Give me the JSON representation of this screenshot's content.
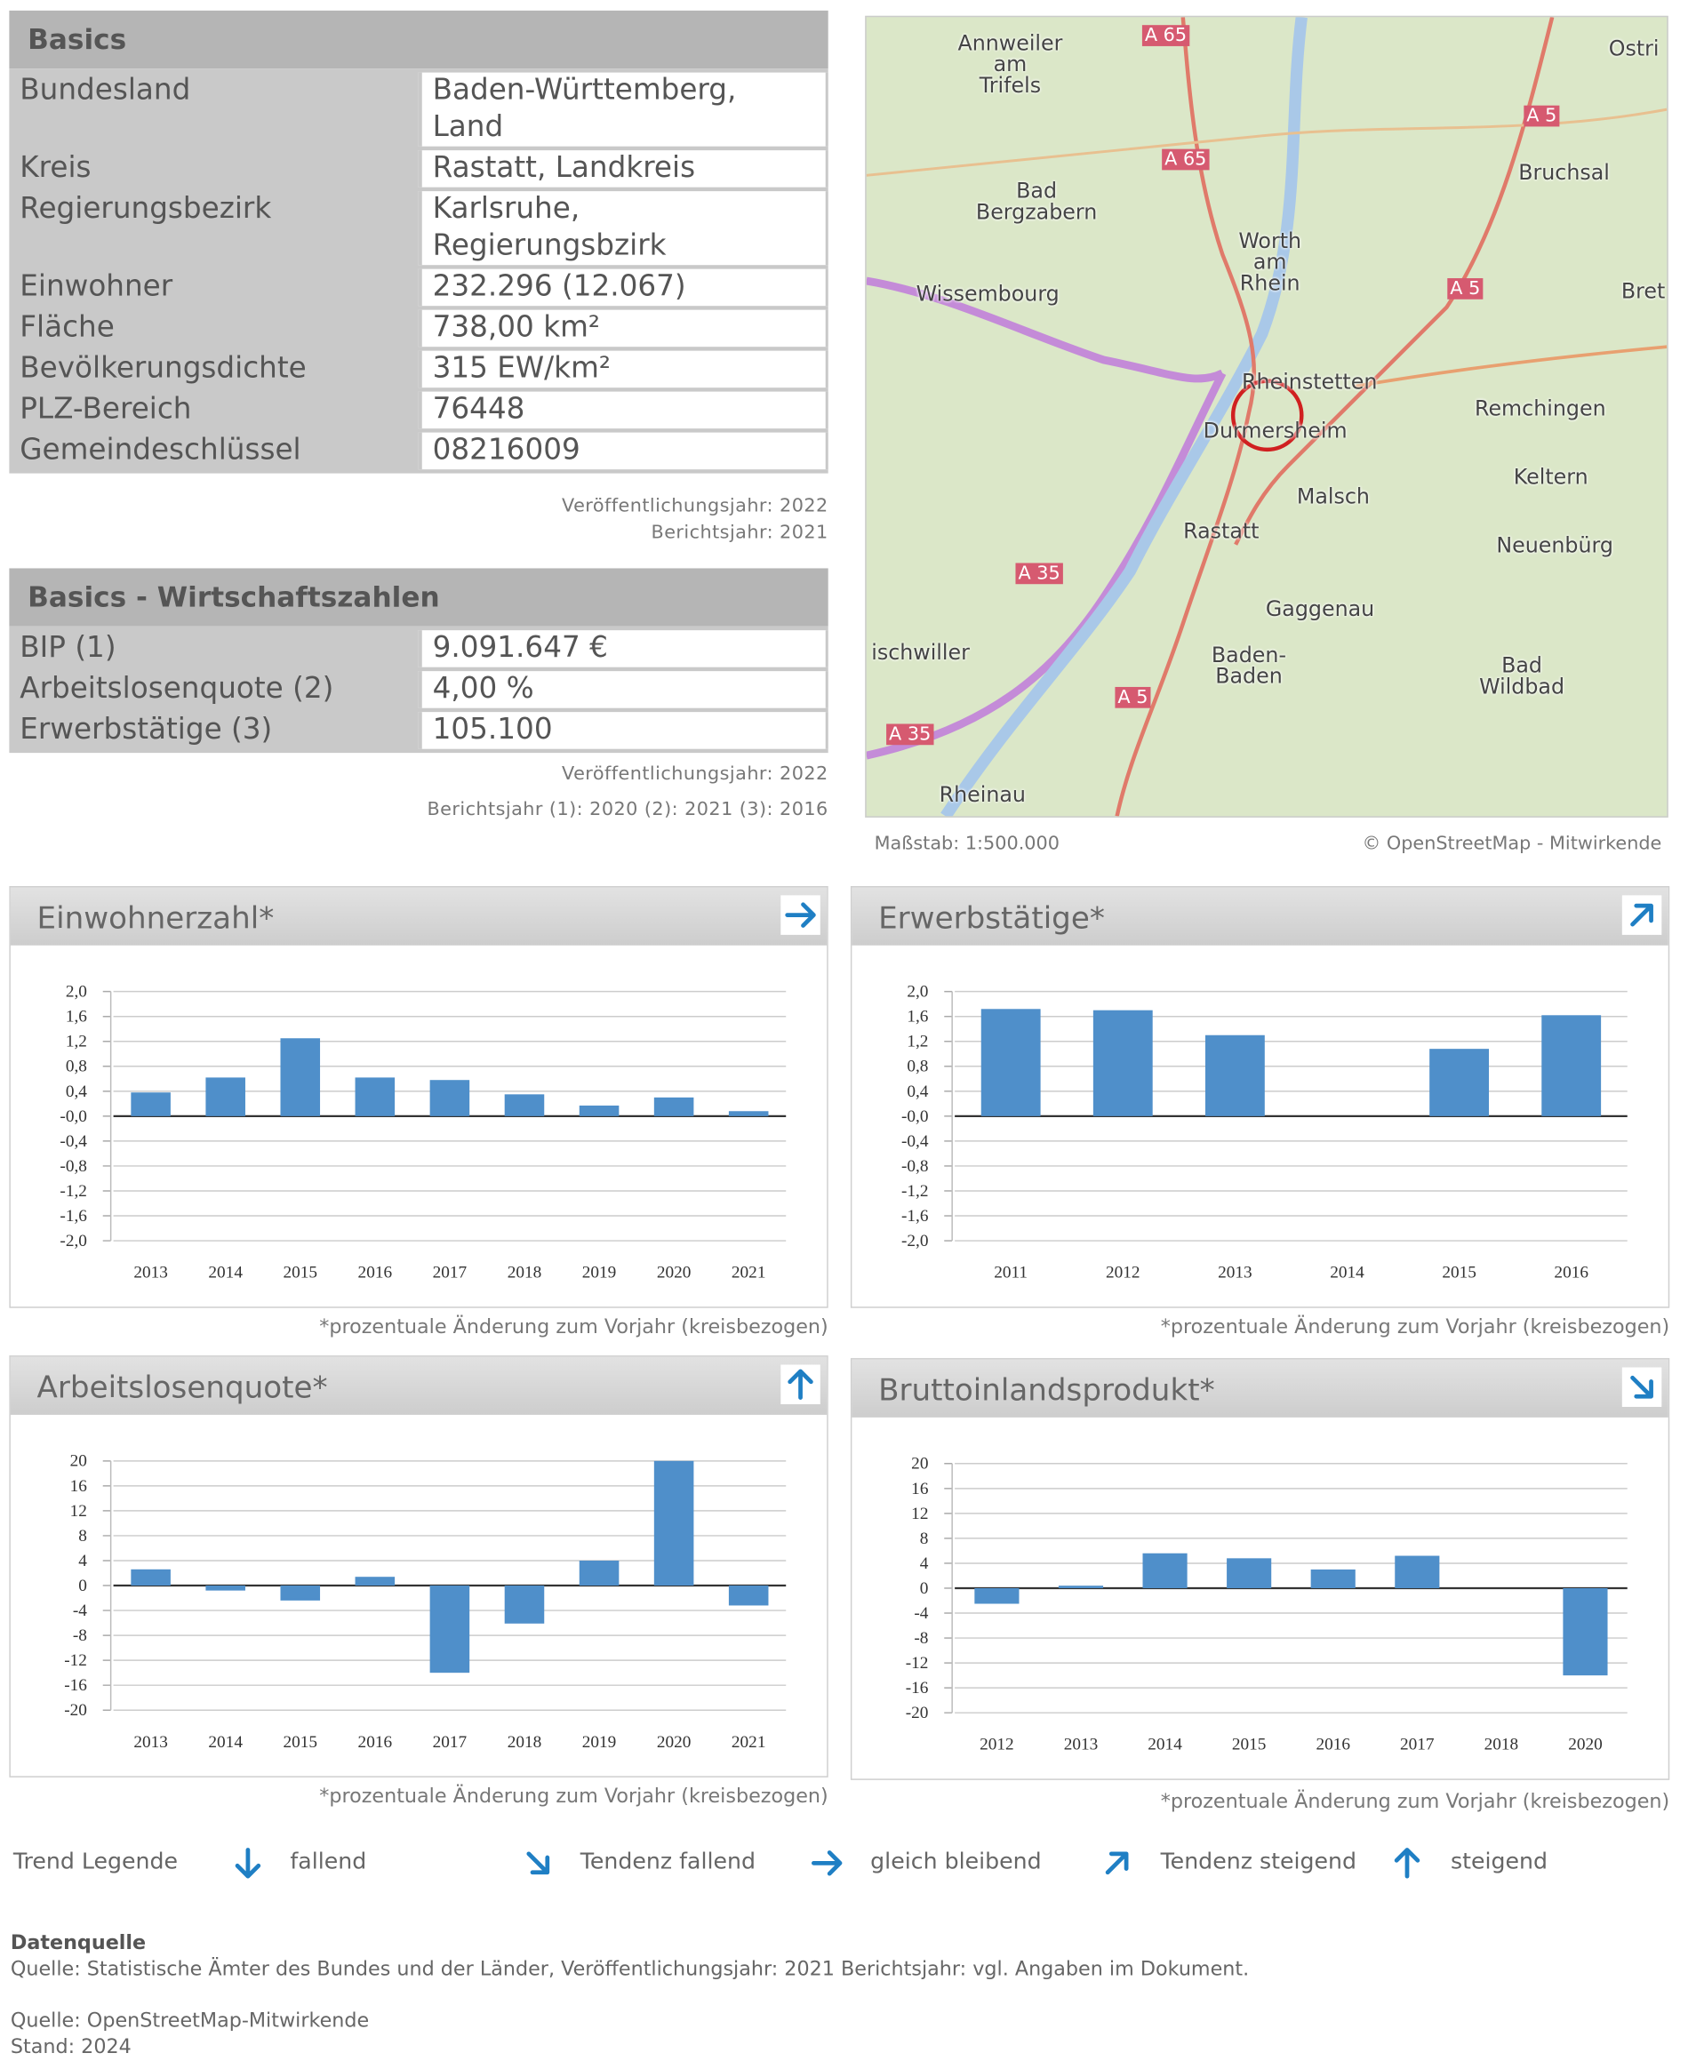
{
  "basics": {
    "title": "Basics",
    "rows": [
      [
        "Bundesland",
        "Baden-Württemberg, Land"
      ],
      [
        "Kreis",
        "Rastatt, Landkreis"
      ],
      [
        "Regierungsbezirk",
        "Karlsruhe, Regierungsbzirk"
      ],
      [
        "Einwohner",
        "232.296 (12.067)"
      ],
      [
        "Fläche",
        "738,00 km²"
      ],
      [
        "Bevölkerungsdichte",
        "315 EW/km²"
      ],
      [
        "PLZ-Bereich",
        "76448"
      ],
      [
        "Gemeindeschlüssel",
        "08216009"
      ]
    ],
    "notes": [
      "Veröffentlichungsjahr: 2022",
      "Berichtsjahr: 2021"
    ]
  },
  "wirtschaft": {
    "title": "Basics - Wirtschaftszahlen",
    "rows": [
      [
        "BIP (1)",
        "9.091.647 €"
      ],
      [
        "Arbeitslosenquote (2)",
        "4,00 %"
      ],
      [
        "Erwerbstätige (3)",
        "105.100"
      ]
    ],
    "notes": [
      "Veröffentlichungsjahr: 2022",
      "Berichtsjahr (1): 2020 (2): 2021 (3): 2016"
    ]
  },
  "map": {
    "labels": [
      "Annweiler\nam\nTrifels",
      "A 65",
      "Ostri",
      "A 5",
      "A 65",
      "Bruchsal",
      "Bad\nBergzabern",
      "Worth\nam\nRhein",
      "A 5",
      "Bret",
      "Wissembourg",
      "Rheinstetten",
      "Remchingen",
      "Durmersheim",
      "Keltern",
      "Malsch",
      "Rastatt",
      "Neuenbürg",
      "A 35",
      "Gaggenau",
      "ischwiller",
      "Baden-\nBaden",
      "Bad\nWildbad",
      "A 5",
      "A 35",
      "Rheinau"
    ],
    "scale": "Maßstab: 1:500.000",
    "credit": "© OpenStreetMap - Mitwirkende"
  },
  "chart_data": [
    {
      "type": "bar",
      "title": "Einwohnerzahl*",
      "trend": "east",
      "color": "#4f8fca",
      "grid": true,
      "categories": [
        "2013",
        "2014",
        "2015",
        "2016",
        "2017",
        "2018",
        "2019",
        "2020",
        "2021"
      ],
      "values": [
        0.38,
        0.62,
        1.25,
        0.62,
        0.58,
        0.35,
        0.17,
        0.3,
        0.08
      ],
      "ylim": [
        -2,
        2
      ],
      "yticks": [
        {
          "value": 2,
          "label": "2,0"
        },
        {
          "value": 1.6,
          "label": "1,6"
        },
        {
          "value": 1.2,
          "label": "1,2"
        },
        {
          "value": 0.8,
          "label": "0,8"
        },
        {
          "value": 0.4,
          "label": "0,4"
        },
        {
          "value": 0,
          "label": "-0,0"
        },
        {
          "value": -0.4,
          "label": "-0,4"
        },
        {
          "value": -0.8,
          "label": "-0,8"
        },
        {
          "value": -1.2,
          "label": "-1,2"
        },
        {
          "value": -1.6,
          "label": "-1,6"
        },
        {
          "value": -2,
          "label": "-2,0"
        }
      ],
      "note": "*prozentuale Änderung zum Vorjahr (kreisbezogen)"
    },
    {
      "type": "bar",
      "title": "Erwerbstätige*",
      "trend": "northeast",
      "color": "#4f8fca",
      "grid": true,
      "categories": [
        "2011",
        "2012",
        "2013",
        "2014",
        "2015",
        "2016"
      ],
      "values": [
        1.72,
        1.7,
        1.3,
        null,
        1.08,
        1.62
      ],
      "ylim": [
        -2,
        2
      ],
      "yticks": [
        {
          "value": 2,
          "label": "2,0"
        },
        {
          "value": 1.6,
          "label": "1,6"
        },
        {
          "value": 1.2,
          "label": "1,2"
        },
        {
          "value": 0.8,
          "label": "0,8"
        },
        {
          "value": 0.4,
          "label": "0,4"
        },
        {
          "value": 0,
          "label": "-0,0"
        },
        {
          "value": -0.4,
          "label": "-0,4"
        },
        {
          "value": -0.8,
          "label": "-0,8"
        },
        {
          "value": -1.2,
          "label": "-1,2"
        },
        {
          "value": -1.6,
          "label": "-1,6"
        },
        {
          "value": -2,
          "label": "-2,0"
        }
      ],
      "note": "*prozentuale Änderung zum Vorjahr (kreisbezogen)"
    },
    {
      "type": "bar",
      "title": "Arbeitslosenquote*",
      "trend": "north",
      "color": "#4f8fca",
      "grid": true,
      "categories": [
        "2013",
        "2014",
        "2015",
        "2016",
        "2017",
        "2018",
        "2019",
        "2020",
        "2021"
      ],
      "values": [
        2.6,
        -0.8,
        -2.4,
        1.4,
        -14,
        -6.1,
        4,
        20,
        -3.2
      ],
      "ylim": [
        -20,
        20
      ],
      "yticks": [
        20,
        16,
        12,
        8,
        4,
        0,
        -4,
        -8,
        -12,
        -16,
        -20
      ],
      "note": "*prozentuale Änderung zum Vorjahr (kreisbezogen)"
    },
    {
      "type": "bar",
      "title": "Bruttoinlandsprodukt*",
      "trend": "southeast",
      "color": "#4f8fca",
      "grid": true,
      "categories": [
        "2012",
        "2013",
        "2014",
        "2015",
        "2016",
        "2017",
        "2018",
        "2020"
      ],
      "values": [
        -2.5,
        0.4,
        5.6,
        4.8,
        3,
        5.2,
        null,
        -14
      ],
      "ylim": [
        -20,
        20
      ],
      "yticks": [
        20,
        16,
        12,
        8,
        4,
        0,
        -4,
        -8,
        -12,
        -16,
        -20
      ],
      "note": "*prozentuale Änderung zum Vorjahr (kreisbezogen)"
    }
  ],
  "legend": {
    "title": "Trend Legende",
    "items": [
      {
        "label": "fallend",
        "icon": "south"
      },
      {
        "label": "Tendenz fallend",
        "icon": "southeast"
      },
      {
        "label": "gleich bleibend",
        "icon": "east"
      },
      {
        "label": "Tendenz steigend",
        "icon": "northeast"
      },
      {
        "label": "steigend",
        "icon": "north"
      }
    ]
  },
  "source": {
    "title": "Datenquelle",
    "lines": [
      "Quelle: Statistische Ämter des Bundes und der Länder, Veröffentlichungsjahr: 2021 Berichtsjahr: vgl. Angaben im Dokument.",
      "Quelle: OpenStreetMap-Mitwirkende",
      "Stand: 2024"
    ]
  }
}
